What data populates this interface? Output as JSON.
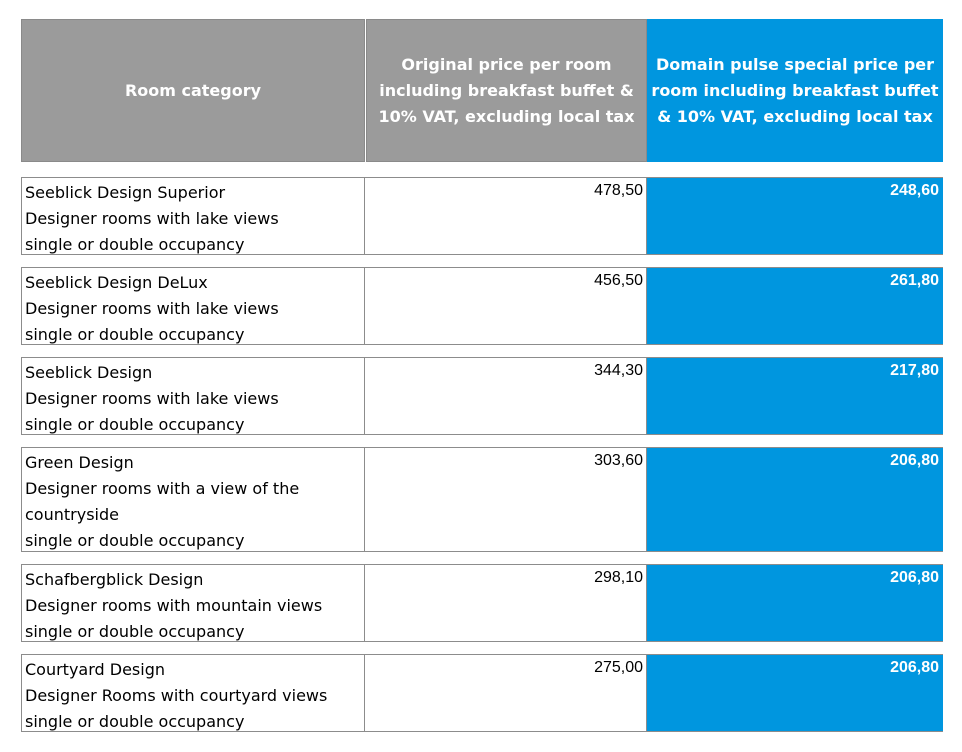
{
  "header": {
    "room_category": "Room category",
    "original_price": "Original price per room including breakfast buffet & 10% VAT, excluding local tax",
    "special_price": "Domain pulse special price per room including breakfast buffet & 10% VAT, excluding local tax"
  },
  "rows": [
    {
      "lines": [
        "Seeblick Design Superior",
        "Designer rooms with lake views",
        "single or double occupancy"
      ],
      "original_price": "478,50",
      "special_price": "248,60"
    },
    {
      "lines": [
        "Seeblick Design DeLux",
        "Designer rooms with lake views",
        "single or double occupancy"
      ],
      "original_price": "456,50",
      "special_price": "261,80"
    },
    {
      "lines": [
        "Seeblick Design",
        "Designer rooms with lake views",
        "single or double occupancy"
      ],
      "original_price": "344,30",
      "special_price": "217,80"
    },
    {
      "lines": [
        "Green Design",
        "Designer rooms with a view of the",
        "countryside",
        "single or double occupancy"
      ],
      "original_price": "303,60",
      "special_price": "206,80"
    },
    {
      "lines": [
        "Schafbergblick Design",
        "Designer rooms with mountain views",
        "single or double occupancy"
      ],
      "original_price": "298,10",
      "special_price": "206,80"
    },
    {
      "lines": [
        "Courtyard Design",
        "Designer Rooms with courtyard views",
        "single or double occupancy"
      ],
      "original_price": "275,00",
      "special_price": "206,80"
    }
  ]
}
